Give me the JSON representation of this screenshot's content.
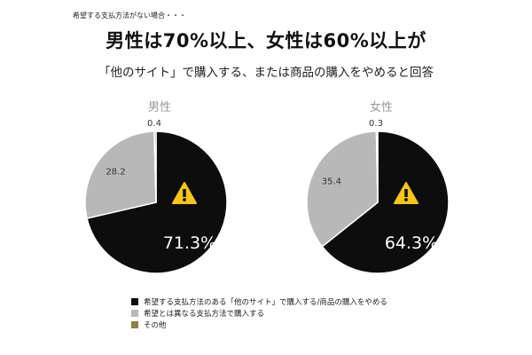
{
  "note": "希望する支払方法がない場合・・・",
  "headline": "男性は70%以上、女性は60%以上が",
  "subline": "「他のサイト」で購入する、または商品の購入をやめると回答",
  "colors": {
    "dark": "#0d0d0d",
    "gray": "#b8b8b8",
    "olive": "#8c7f4a",
    "warning": "#f5c518"
  },
  "chart_data": [
    {
      "type": "pie",
      "title": "男性",
      "categories": [
        "希望する支払方法のある「他のサイト」で購入する/商品の購入をやめる",
        "希望とは異なる支払方法で購入する",
        "その他"
      ],
      "values": [
        71.3,
        28.2,
        0.4
      ],
      "labels": [
        "71.3%",
        "28.2",
        "0.4"
      ],
      "icon": "warning-icon"
    },
    {
      "type": "pie",
      "title": "女性",
      "categories": [
        "希望する支払方法のある「他のサイト」で購入する/商品の購入をやめる",
        "希望とは異なる支払方法で購入する",
        "その他"
      ],
      "values": [
        64.3,
        35.4,
        0.3
      ],
      "labels": [
        "64.3%",
        "35.4",
        "0.3"
      ],
      "icon": "warning-icon"
    }
  ],
  "legend": [
    {
      "label": "希望する支払方法のある「他のサイト」で購入する/商品の購入をやめる",
      "color": "#0d0d0d"
    },
    {
      "label": "希望とは異なる支払方法で購入する",
      "color": "#b8b8b8"
    },
    {
      "label": "その他",
      "color": "#8c7f4a"
    }
  ]
}
